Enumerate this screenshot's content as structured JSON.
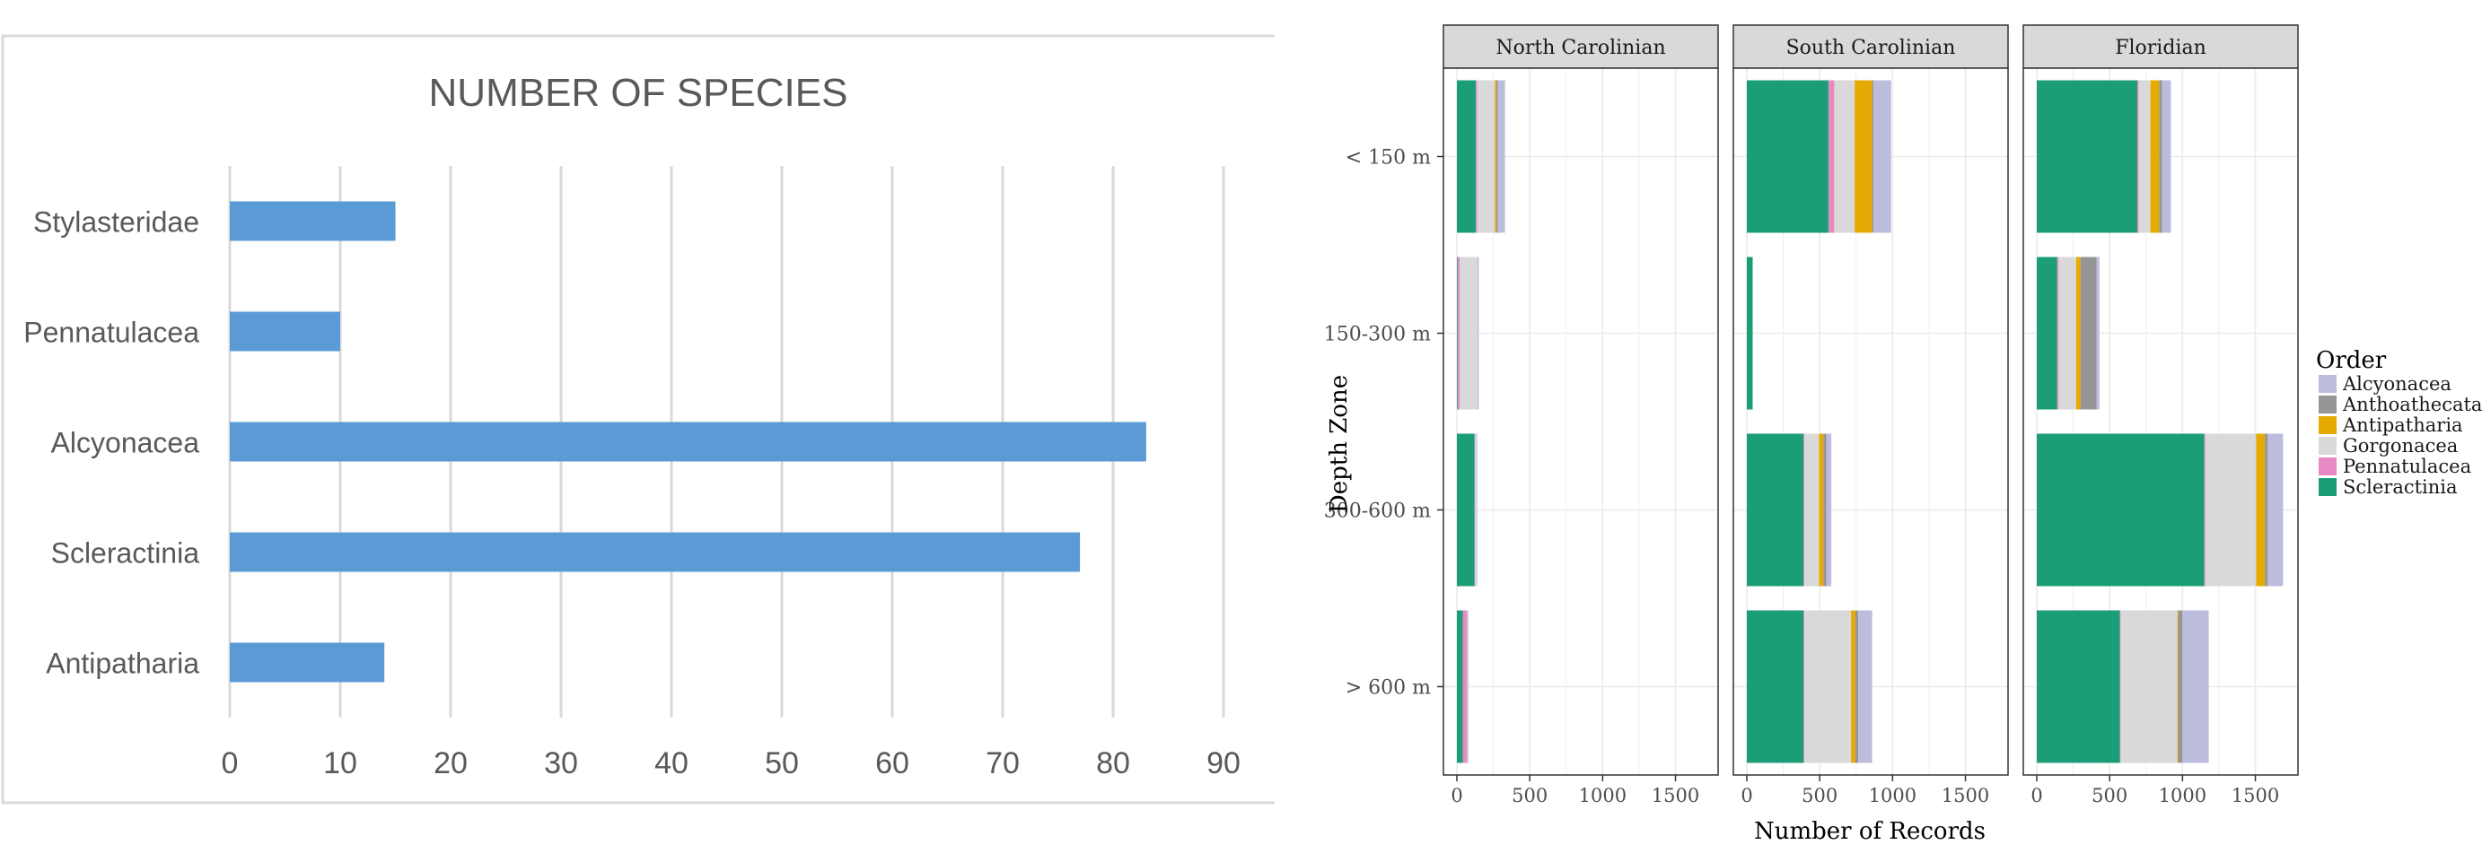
{
  "chart_data": [
    {
      "type": "bar",
      "orientation": "horizontal",
      "title": "NUMBER OF SPECIES",
      "categories": [
        "Stylasteridae",
        "Pennatulacea",
        "Alcyonacea",
        "Scleractinia",
        "Antipatharia"
      ],
      "values": [
        15,
        10,
        83,
        77,
        14
      ],
      "xlim": [
        0,
        90
      ],
      "xticks": [
        "0",
        "10",
        "20",
        "30",
        "40",
        "50",
        "60",
        "70",
        "80",
        "90"
      ],
      "grid": true,
      "color": "#5b9bd5"
    },
    {
      "type": "bar",
      "orientation": "horizontal",
      "stacked": true,
      "xlabel": "Number of Records",
      "ylabel": "Depth Zone",
      "facets": [
        "North Carolinian",
        "South Carolinian",
        "Floridian"
      ],
      "categories": [
        "< 150 m",
        "150-300 m",
        "300-600 m",
        "> 600 m"
      ],
      "xlim": [
        0,
        1700
      ],
      "xticks": [
        "0",
        "500",
        "1000",
        "1500"
      ],
      "legend": {
        "title": "Order",
        "position": "right",
        "items": [
          {
            "label": "Alcyonacea",
            "color": "#bcbddc"
          },
          {
            "label": "Anthoathecata",
            "color": "#969696"
          },
          {
            "label": "Antipatharia",
            "color": "#e6ab02"
          },
          {
            "label": "Gorgonacea",
            "color": "#d9d9d9"
          },
          {
            "label": "Pennatulacea",
            "color": "#e78ac3"
          },
          {
            "label": "Scleractinia",
            "color": "#1b9e77"
          }
        ]
      },
      "stack_order": [
        "Scleractinia",
        "Pennatulacea",
        "Gorgonacea",
        "Antipatharia",
        "Anthoathecata",
        "Alcyonacea"
      ],
      "series": {
        "North Carolinian": {
          "< 150 m": {
            "Scleractinia": 130,
            "Pennatulacea": 10,
            "Gorgonacea": 120,
            "Antipatharia": 10,
            "Anthoathecata": 10,
            "Alcyonacea": 50
          },
          "150-300 m": {
            "Scleractinia": 5,
            "Pennatulacea": 15,
            "Gorgonacea": 120,
            "Antipatharia": 0,
            "Anthoathecata": 0,
            "Alcyonacea": 10
          },
          "300-600 m": {
            "Scleractinia": 120,
            "Pennatulacea": 5,
            "Gorgonacea": 10,
            "Antipatharia": 0,
            "Anthoathecata": 0,
            "Alcyonacea": 5
          },
          "> 600 m": {
            "Scleractinia": 40,
            "Pennatulacea": 30,
            "Gorgonacea": 5,
            "Antipatharia": 0,
            "Anthoathecata": 0,
            "Alcyonacea": 5
          }
        },
        "South Carolinian": {
          "< 150 m": {
            "Scleractinia": 560,
            "Pennatulacea": 40,
            "Gorgonacea": 140,
            "Antipatharia": 120,
            "Anthoathecata": 10,
            "Alcyonacea": 120
          },
          "150-300 m": {
            "Scleractinia": 40,
            "Pennatulacea": 0,
            "Gorgonacea": 0,
            "Antipatharia": 0,
            "Anthoathecata": 0,
            "Alcyonacea": 0
          },
          "300-600 m": {
            "Scleractinia": 390,
            "Pennatulacea": 5,
            "Gorgonacea": 100,
            "Antipatharia": 30,
            "Anthoathecata": 20,
            "Alcyonacea": 35
          },
          "> 600 m": {
            "Scleractinia": 390,
            "Pennatulacea": 5,
            "Gorgonacea": 320,
            "Antipatharia": 30,
            "Anthoathecata": 20,
            "Alcyonacea": 95
          }
        },
        "Floridian": {
          "< 150 m": {
            "Scleractinia": 690,
            "Pennatulacea": 10,
            "Gorgonacea": 80,
            "Antipatharia": 60,
            "Anthoathecata": 20,
            "Alcyonacea": 60
          },
          "150-300 m": {
            "Scleractinia": 140,
            "Pennatulacea": 10,
            "Gorgonacea": 120,
            "Antipatharia": 30,
            "Anthoathecata": 110,
            "Alcyonacea": 20
          },
          "300-600 m": {
            "Scleractinia": 1150,
            "Pennatulacea": 5,
            "Gorgonacea": 350,
            "Antipatharia": 60,
            "Anthoathecata": 20,
            "Alcyonacea": 105
          },
          "> 600 m": {
            "Scleractinia": 570,
            "Pennatulacea": 5,
            "Gorgonacea": 390,
            "Antipatharia": 5,
            "Anthoathecata": 30,
            "Alcyonacea": 180
          }
        }
      }
    }
  ]
}
